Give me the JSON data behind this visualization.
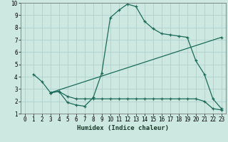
{
  "xlabel": "Humidex (Indice chaleur)",
  "bg_color": "#cce8e0",
  "grid_color": "#aacccc",
  "line_color": "#1a6b5a",
  "xlim": [
    -0.5,
    23.5
  ],
  "ylim": [
    1,
    10
  ],
  "xticks": [
    0,
    1,
    2,
    3,
    4,
    5,
    6,
    7,
    8,
    9,
    10,
    11,
    12,
    13,
    14,
    15,
    16,
    17,
    18,
    19,
    20,
    21,
    22,
    23
  ],
  "yticks": [
    1,
    2,
    3,
    4,
    5,
    6,
    7,
    8,
    9,
    10
  ],
  "line1_x": [
    1,
    2,
    3,
    4,
    5,
    6,
    7,
    8,
    9,
    10,
    11,
    12,
    13,
    14,
    15,
    16,
    17,
    18,
    19,
    20,
    21,
    22,
    23
  ],
  "line1_y": [
    4.2,
    3.6,
    2.7,
    2.8,
    1.9,
    1.7,
    1.6,
    2.3,
    4.3,
    8.8,
    9.4,
    9.9,
    9.7,
    8.5,
    7.9,
    7.5,
    7.4,
    7.3,
    7.2,
    5.3,
    4.2,
    2.2,
    1.4
  ],
  "line2_x": [
    3,
    4,
    5,
    6,
    7,
    8,
    9,
    10,
    11,
    12,
    13,
    14,
    15,
    16,
    17,
    18,
    19,
    20,
    21,
    22,
    23
  ],
  "line2_y": [
    2.7,
    2.8,
    2.4,
    2.2,
    2.2,
    2.2,
    2.2,
    2.2,
    2.2,
    2.2,
    2.2,
    2.2,
    2.2,
    2.2,
    2.2,
    2.2,
    2.2,
    2.2,
    2.0,
    1.4,
    1.3
  ],
  "line3_x": [
    3,
    23
  ],
  "line3_y": [
    2.7,
    7.2
  ]
}
